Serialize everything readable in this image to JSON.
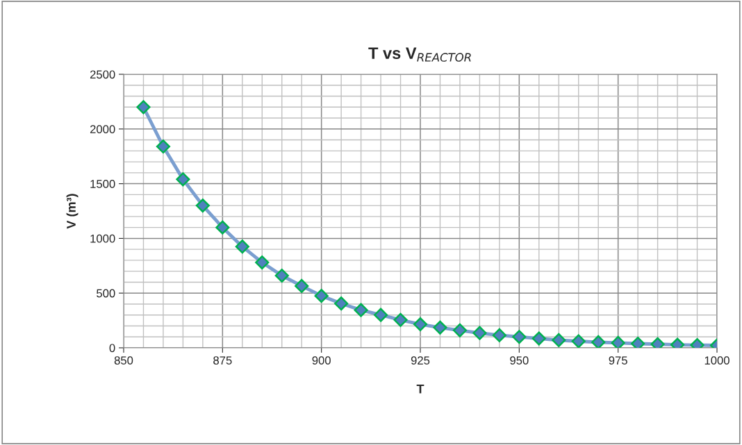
{
  "chart_data": {
    "type": "line",
    "title": "T vs V$_{REACTOR}$",
    "xlabel": "T",
    "ylabel": "V (m³)",
    "x": [
      855,
      860,
      865,
      870,
      875,
      880,
      885,
      890,
      895,
      900,
      905,
      910,
      915,
      920,
      925,
      930,
      935,
      940,
      945,
      950,
      955,
      960,
      965,
      970,
      975,
      980,
      985,
      990,
      995,
      1000
    ],
    "series": [
      {
        "color": "#4f81bd",
        "values": [
          2200,
          1840,
          1540,
          1300,
          1100,
          925,
          780,
          660,
          565,
          475,
          405,
          345,
          300,
          255,
          215,
          185,
          160,
          135,
          115,
          100,
          85,
          70,
          60,
          51,
          45,
          38,
          33,
          28,
          25,
          22
        ]
      }
    ],
    "xlim": [
      850,
      1000
    ],
    "xticks": [
      850,
      875,
      900,
      925,
      950,
      975,
      1000
    ],
    "ylim": [
      0,
      2500
    ],
    "yticks": [
      0,
      500,
      1000,
      1500,
      2000,
      2500
    ],
    "grid": true,
    "legend": false,
    "marker": "diamond",
    "line_style": "solid"
  }
}
